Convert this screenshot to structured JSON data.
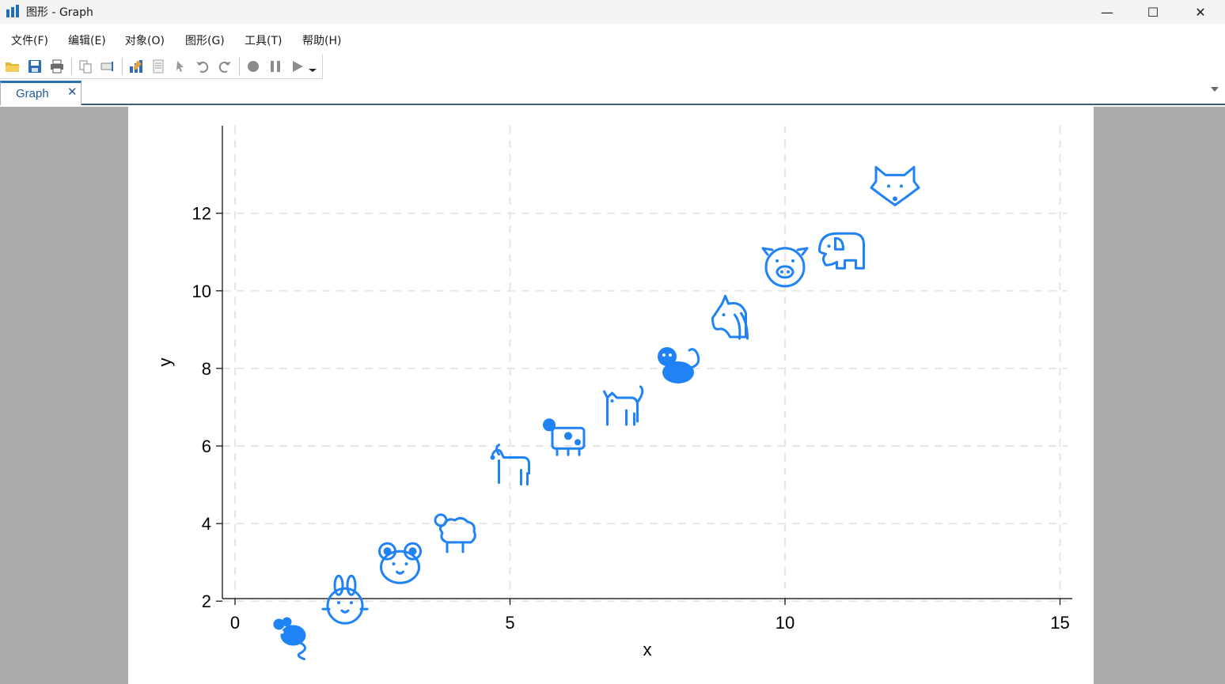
{
  "window": {
    "title": "图形 - Graph",
    "minimize_glyph": "—",
    "maximize_glyph": "☐",
    "close_glyph": "✕"
  },
  "menu": {
    "items": [
      "文件(F)",
      "编辑(E)",
      "对象(O)",
      "图形(G)",
      "工具(T)",
      "帮助(H)"
    ]
  },
  "toolbar": {
    "icons": [
      "open-folder-icon",
      "save-icon",
      "print-icon",
      "copy-icon",
      "rename-icon",
      "graph-editor-icon",
      "properties-icon",
      "pointer-icon",
      "undo-icon",
      "redo-icon",
      "record-icon",
      "pause-icon",
      "play-icon",
      "dropdown-arrow-icon"
    ]
  },
  "tab": {
    "label": "Graph",
    "close_glyph": "✕"
  },
  "colors": {
    "marker": "#1f82f5",
    "grid": "#e6e6e6",
    "axis": "#000000",
    "tab_accent": "#2a6fb2"
  },
  "chart_data": {
    "type": "scatter",
    "title": "",
    "xlabel": "x",
    "ylabel": "y",
    "xlim": [
      0,
      15
    ],
    "ylim": [
      1,
      13.2
    ],
    "xticks": [
      0,
      5,
      10,
      15
    ],
    "yticks": [
      2,
      4,
      6,
      8,
      10,
      12
    ],
    "grid": true,
    "marker_style": "animal emoji",
    "points": [
      {
        "x": 1,
        "y": 1.2,
        "marker": "mouse"
      },
      {
        "x": 2,
        "y": 2.0,
        "marker": "rabbit"
      },
      {
        "x": 3,
        "y": 3.0,
        "marker": "mouse-face"
      },
      {
        "x": 4,
        "y": 3.8,
        "marker": "sheep"
      },
      {
        "x": 5,
        "y": 5.5,
        "marker": "goat"
      },
      {
        "x": 6,
        "y": 6.3,
        "marker": "cow"
      },
      {
        "x": 7,
        "y": 7.0,
        "marker": "cat"
      },
      {
        "x": 8,
        "y": 8.1,
        "marker": "monkey"
      },
      {
        "x": 9,
        "y": 9.3,
        "marker": "unicorn"
      },
      {
        "x": 10,
        "y": 10.65,
        "marker": "pig-face"
      },
      {
        "x": 11,
        "y": 10.95,
        "marker": "elephant"
      },
      {
        "x": 12,
        "y": 12.7,
        "marker": "fox-face"
      }
    ]
  }
}
